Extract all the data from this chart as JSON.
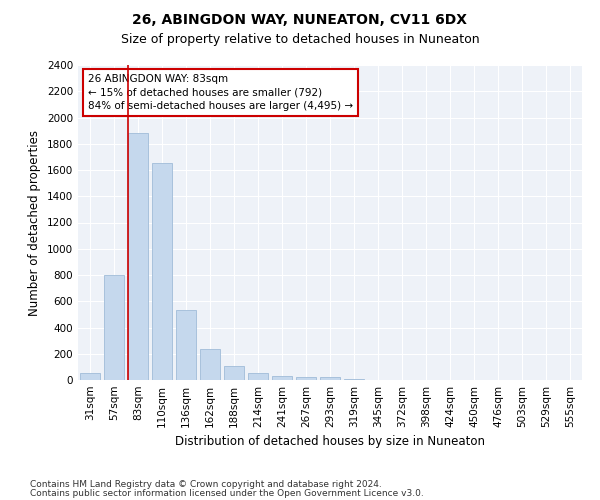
{
  "title1": "26, ABINGDON WAY, NUNEATON, CV11 6DX",
  "title2": "Size of property relative to detached houses in Nuneaton",
  "xlabel": "Distribution of detached houses by size in Nuneaton",
  "ylabel": "Number of detached properties",
  "categories": [
    "31sqm",
    "57sqm",
    "83sqm",
    "110sqm",
    "136sqm",
    "162sqm",
    "188sqm",
    "214sqm",
    "241sqm",
    "267sqm",
    "293sqm",
    "319sqm",
    "345sqm",
    "372sqm",
    "398sqm",
    "424sqm",
    "450sqm",
    "476sqm",
    "503sqm",
    "529sqm",
    "555sqm"
  ],
  "values": [
    50,
    800,
    1880,
    1650,
    530,
    240,
    110,
    50,
    30,
    20,
    20,
    5,
    3,
    2,
    1,
    1,
    0,
    0,
    0,
    0,
    0
  ],
  "bar_color": "#c5d8ed",
  "bar_edge_color": "#a0bcd8",
  "highlight_index": 2,
  "highlight_line_color": "#cc0000",
  "annotation_line1": "26 ABINGDON WAY: 83sqm",
  "annotation_line2": "← 15% of detached houses are smaller (792)",
  "annotation_line3": "84% of semi-detached houses are larger (4,495) →",
  "annotation_box_color": "#ffffff",
  "annotation_box_edge": "#cc0000",
  "ylim": [
    0,
    2400
  ],
  "yticks": [
    0,
    200,
    400,
    600,
    800,
    1000,
    1200,
    1400,
    1600,
    1800,
    2000,
    2200,
    2400
  ],
  "background_color": "#eef2f8",
  "footer_line1": "Contains HM Land Registry data © Crown copyright and database right 2024.",
  "footer_line2": "Contains public sector information licensed under the Open Government Licence v3.0.",
  "title1_fontsize": 10,
  "title2_fontsize": 9,
  "xlabel_fontsize": 8.5,
  "ylabel_fontsize": 8.5,
  "tick_fontsize": 7.5,
  "annotation_fontsize": 7.5,
  "footer_fontsize": 6.5
}
